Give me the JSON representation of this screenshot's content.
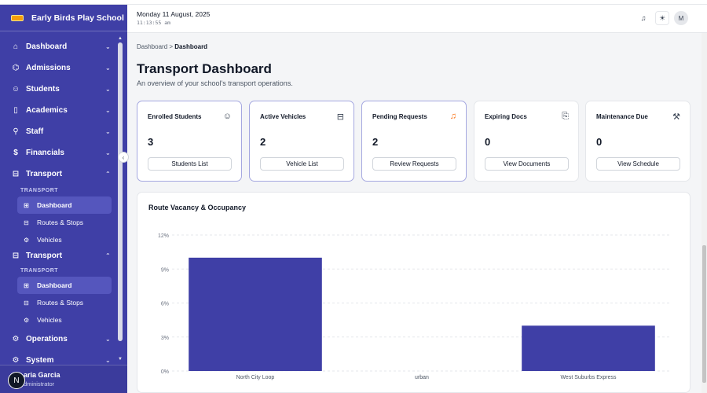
{
  "sidebar": {
    "brand": "Early Birds Play School",
    "items": [
      {
        "label": "Dashboard",
        "icon": "home-icon",
        "glyph": "⌂",
        "chev": "⌄"
      },
      {
        "label": "Admissions",
        "icon": "graduation-cap-icon",
        "glyph": "⌬",
        "chev": "⌄"
      },
      {
        "label": "Students",
        "icon": "users-icon",
        "glyph": "☺",
        "chev": "⌄"
      },
      {
        "label": "Academics",
        "icon": "book-icon",
        "glyph": "▯",
        "chev": "⌄"
      },
      {
        "label": "Staff",
        "icon": "staff-icon",
        "glyph": "⚲",
        "chev": "⌄"
      },
      {
        "label": "Financials",
        "icon": "dollar-icon",
        "glyph": "$",
        "chev": "⌄"
      },
      {
        "label": "Transport",
        "icon": "bus-icon",
        "glyph": "⊟",
        "chev": "⌃"
      }
    ],
    "section_label": "TRANSPORT",
    "sub_items": [
      {
        "label": "Dashboard",
        "glyph": "⊞"
      },
      {
        "label": "Routes & Stops",
        "glyph": "⊟"
      },
      {
        "label": "Vehicles",
        "glyph": "⚙"
      }
    ],
    "transport_repeat": {
      "label": "Transport",
      "glyph": "⊟",
      "chev": "⌃"
    },
    "operations": {
      "label": "Operations",
      "glyph": "⚙",
      "chev": "⌄"
    },
    "system": {
      "label": "System",
      "glyph": "⚙",
      "chev": "⌄"
    },
    "user": {
      "initial": "N",
      "name": "aria Garcia",
      "role": "dministrator"
    },
    "collapse_glyph": "‹"
  },
  "header": {
    "date": "Monday 11 August, 2025",
    "time": "11:13:55 am",
    "bell_glyph": "♫",
    "theme_glyph": "☀",
    "avatar_initial": "M"
  },
  "breadcrumb": {
    "parent": "Dashboard",
    "separator": ">",
    "current": "Dashboard"
  },
  "page": {
    "title": "Transport Dashboard",
    "subtitle": "An overview of your school's transport operations."
  },
  "cards": [
    {
      "title": "Enrolled Students",
      "value": "3",
      "button": "Students List",
      "icon_glyph": "☺"
    },
    {
      "title": "Active Vehicles",
      "value": "2",
      "button": "Vehicle List",
      "icon_glyph": "⊟"
    },
    {
      "title": "Pending Requests",
      "value": "2",
      "button": "Review Requests",
      "icon_glyph": "♫"
    },
    {
      "title": "Expiring Docs",
      "value": "0",
      "button": "View Documents",
      "icon_glyph": "⎘"
    },
    {
      "title": "Maintenance Due",
      "value": "0",
      "button": "View Schedule",
      "icon_glyph": "⚒"
    }
  ],
  "colors": {
    "accent": "#3f3fa6",
    "bar": "#3f3fa6",
    "bell": "#f97316"
  },
  "chart_data": {
    "type": "bar",
    "title": "Route Vacancy & Occupancy",
    "categories": [
      "North City Loop",
      "urban",
      "West Suburbs Express"
    ],
    "values": [
      10,
      0,
      4
    ],
    "ylim": [
      0,
      12
    ],
    "yticks": [
      0,
      3,
      6,
      9,
      12
    ],
    "ytick_labels": [
      "0%",
      "3%",
      "6%",
      "9%",
      "12%"
    ],
    "xlabel": "",
    "ylabel": "",
    "grid": true
  }
}
